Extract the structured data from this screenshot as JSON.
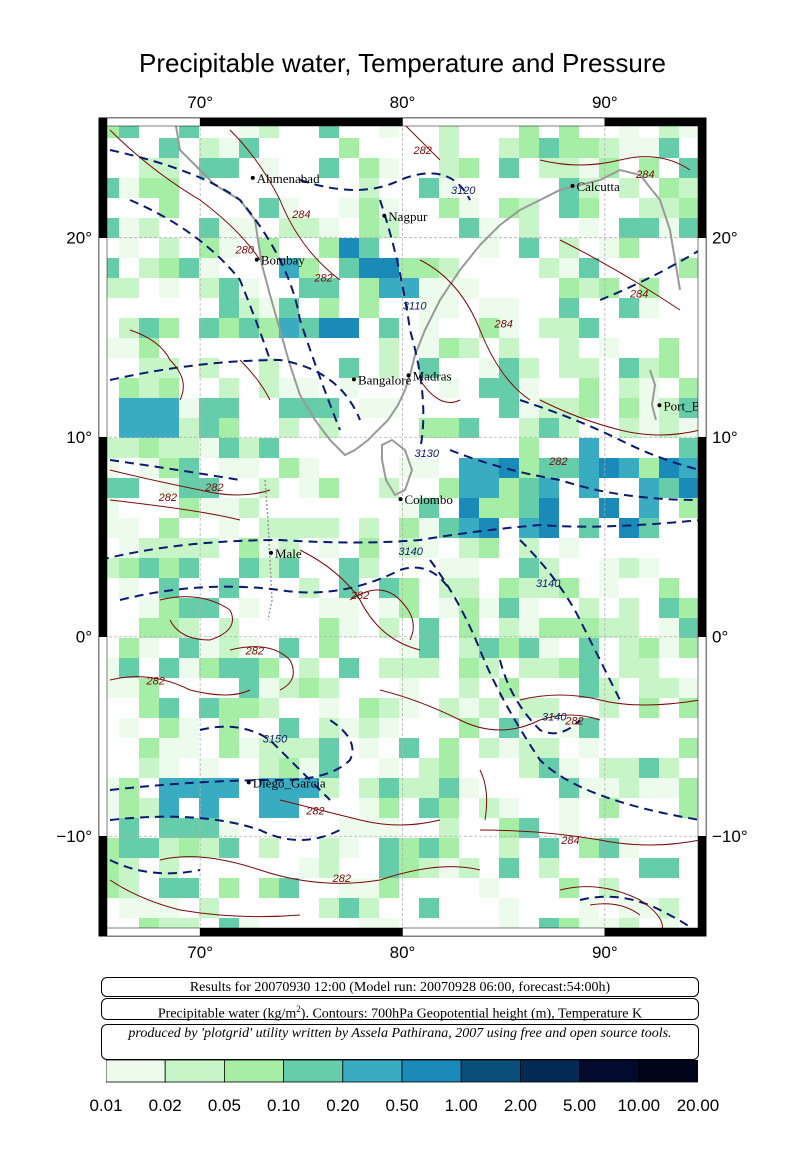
{
  "title": "Precipitable water, Temperature and Pressure",
  "map": {
    "lon_range": [
      65,
      95
    ],
    "lat_range": [
      -15,
      26
    ],
    "lon_ticks": [
      "70°",
      "80°",
      "90°"
    ],
    "lat_ticks": [
      "20°",
      "10°",
      "0°",
      "−10°"
    ],
    "cities": [
      {
        "name": "Ahmenabad",
        "lon": 72.6,
        "lat": 23.0
      },
      {
        "name": "Nagpur",
        "lon": 79.1,
        "lat": 21.1
      },
      {
        "name": "Calcutta",
        "lon": 88.4,
        "lat": 22.6
      },
      {
        "name": "Bombay",
        "lon": 72.8,
        "lat": 18.9
      },
      {
        "name": "Bangalore",
        "lon": 77.6,
        "lat": 12.9
      },
      {
        "name": "Madras",
        "lon": 80.3,
        "lat": 13.1
      },
      {
        "name": "Port_Blair",
        "lon": 92.7,
        "lat": 11.6
      },
      {
        "name": "Colombo",
        "lon": 79.9,
        "lat": 6.9
      },
      {
        "name": "Male",
        "lon": 73.5,
        "lat": 4.2
      },
      {
        "name": "Diego_Garcia",
        "lon": 72.4,
        "lat": -7.3
      }
    ],
    "geopotential_labels": [
      {
        "text": "3120",
        "lon": 83.0,
        "lat": 22.2
      },
      {
        "text": "3110",
        "lon": 80.6,
        "lat": 16.4
      },
      {
        "text": "3130",
        "lon": 81.2,
        "lat": 9.0
      },
      {
        "text": "3140",
        "lon": 80.4,
        "lat": 4.1
      },
      {
        "text": "3140",
        "lon": 87.2,
        "lat": 2.5
      },
      {
        "text": "3140",
        "lon": 87.5,
        "lat": -4.2
      },
      {
        "text": "3150",
        "lon": 73.7,
        "lat": -5.3
      }
    ],
    "temperature_labels": [
      {
        "text": "284",
        "lon": 75.0,
        "lat": 21.0
      },
      {
        "text": "282",
        "lon": 81.0,
        "lat": 24.2
      },
      {
        "text": "280",
        "lon": 72.2,
        "lat": 19.2
      },
      {
        "text": "282",
        "lon": 76.1,
        "lat": 17.8
      },
      {
        "text": "284",
        "lon": 92.0,
        "lat": 23.0
      },
      {
        "text": "284",
        "lon": 85.0,
        "lat": 15.5
      },
      {
        "text": "284",
        "lon": 91.7,
        "lat": 17.0
      },
      {
        "text": "282",
        "lon": 87.7,
        "lat": 8.6
      },
      {
        "text": "282",
        "lon": 70.7,
        "lat": 7.3
      },
      {
        "text": "282",
        "lon": 68.4,
        "lat": 6.8
      },
      {
        "text": "282",
        "lon": 77.9,
        "lat": 1.9
      },
      {
        "text": "282",
        "lon": 67.8,
        "lat": -2.4
      },
      {
        "text": "282",
        "lon": 72.7,
        "lat": -0.9
      },
      {
        "text": "282",
        "lon": 88.5,
        "lat": -4.4
      },
      {
        "text": "282",
        "lon": 75.7,
        "lat": -8.9
      },
      {
        "text": "284",
        "lon": 88.3,
        "lat": -10.4
      },
      {
        "text": "282",
        "lon": 77.0,
        "lat": -12.3
      }
    ]
  },
  "info": {
    "run_line": "Results for 20070930 12:00 (Model run: 20070928 06:00, forecast:54:00h)",
    "fields_line_part1": "Precipitable water (kg/m",
    "fields_line_sup": "2",
    "fields_line_part2": ").  Contours: 700hPa Geopotential height (m), Temperature K",
    "credit_line": "produced by 'plotgrid' utility written by Assela Pathirana, 2007 using free and open source tools."
  },
  "colorbar": {
    "ticks": [
      "0.01",
      "0.02",
      "0.05",
      "0.10",
      "0.20",
      "0.50",
      "1.00",
      "2.00",
      "5.00",
      "10.00",
      "20.00"
    ],
    "colors": [
      "#ecfbec",
      "#c7f5c7",
      "#a6eea6",
      "#66cdaa",
      "#3aacc2",
      "#1a8ab8",
      "#0a4f7a",
      "#052a55",
      "#030a30",
      "#02051a"
    ]
  }
}
